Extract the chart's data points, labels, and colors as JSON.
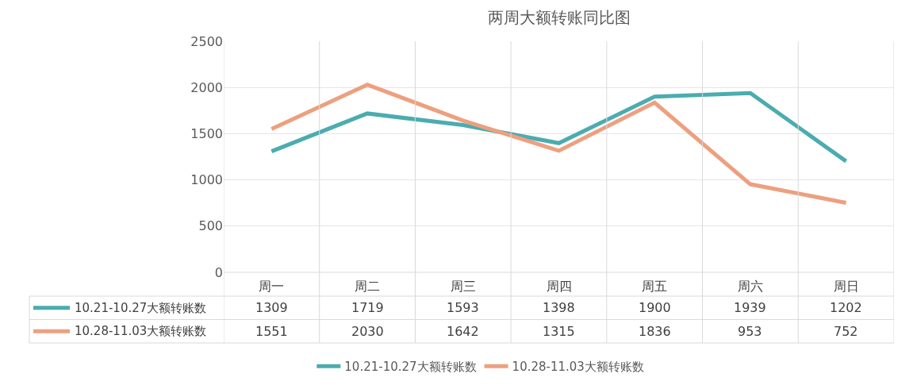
{
  "chart_data": {
    "type": "line",
    "title": "两周大额转账同比图",
    "categories": [
      "周一",
      "周二",
      "周三",
      "周四",
      "周五",
      "周六",
      "周日"
    ],
    "series": [
      {
        "name": "10.21-10.27大额转账数",
        "color": "#4bacb0",
        "values": [
          1309,
          1719,
          1593,
          1398,
          1900,
          1939,
          1202
        ]
      },
      {
        "name": "10.28-11.03大额转账数",
        "color": "#eda07f",
        "values": [
          1551,
          2030,
          1642,
          1315,
          1836,
          953,
          752
        ]
      }
    ],
    "ylim": [
      0,
      2500
    ],
    "yticks": [
      0,
      500,
      1000,
      1500,
      2000,
      2500
    ],
    "grid": true,
    "legend": "bottom",
    "marker": "none",
    "line_style": "solid",
    "data_labels": true
  }
}
